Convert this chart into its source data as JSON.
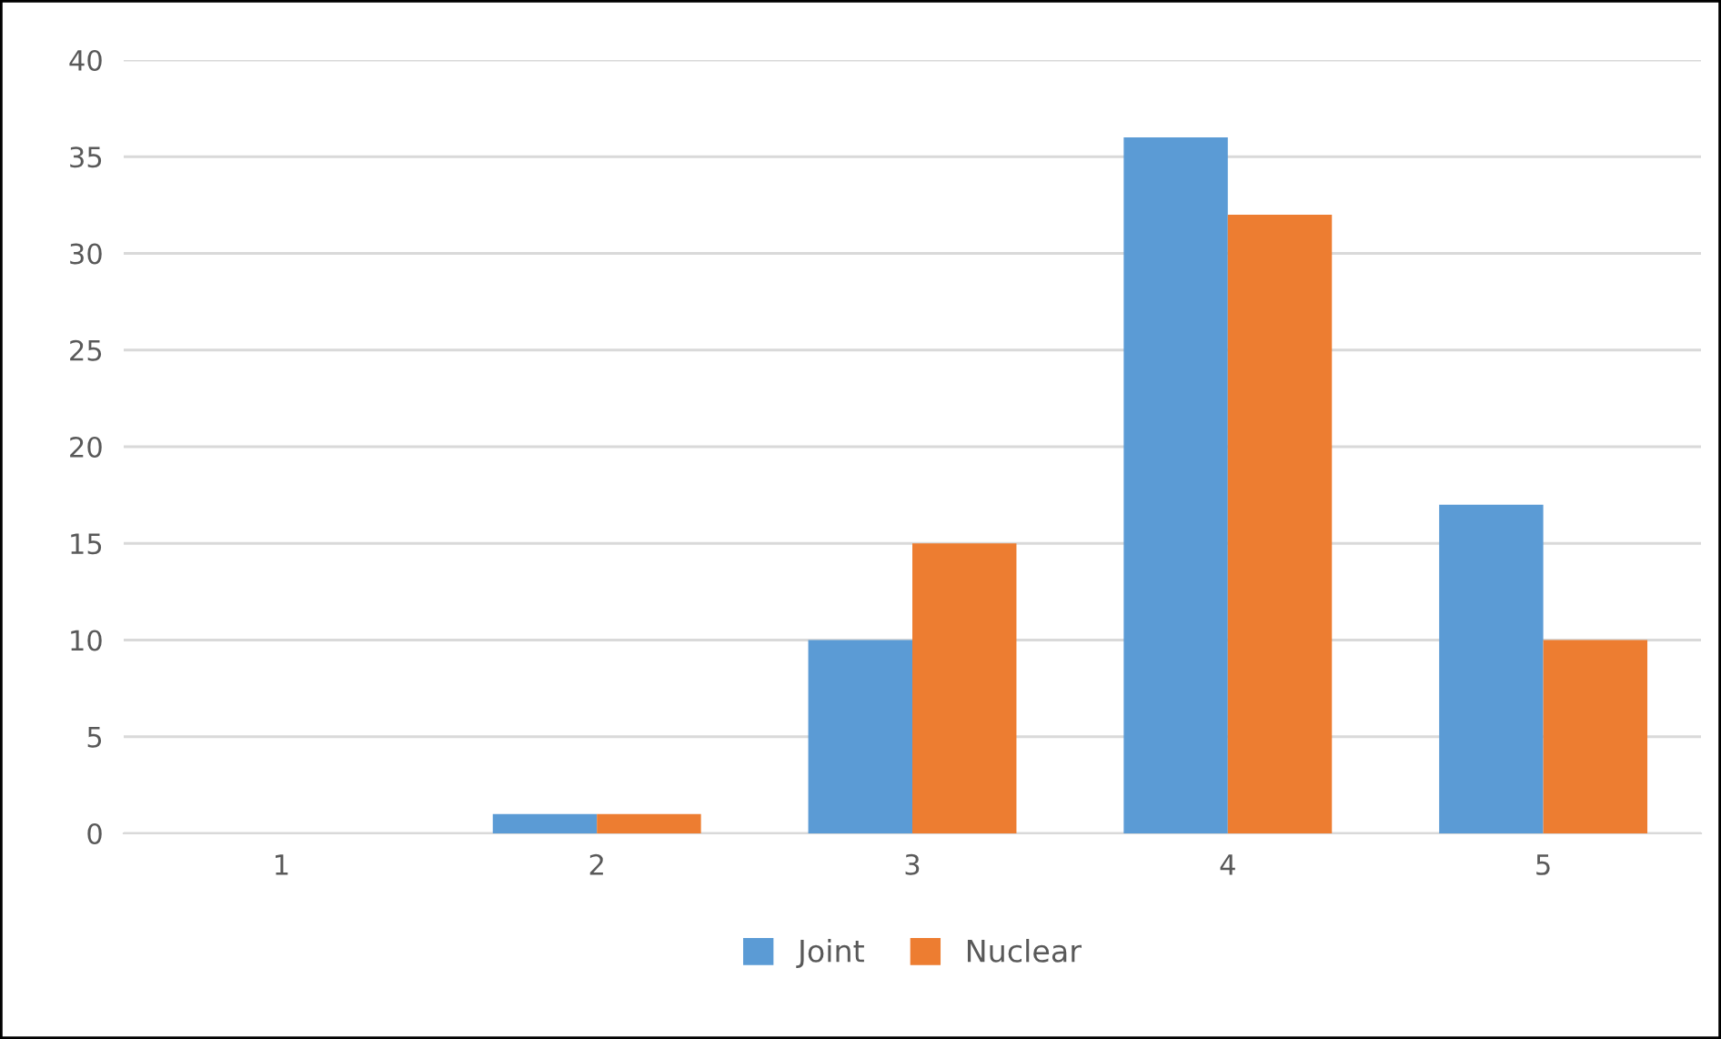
{
  "chart_data": {
    "type": "bar",
    "categories": [
      "1",
      "2",
      "3",
      "4",
      "5"
    ],
    "series": [
      {
        "name": "Joint",
        "color": "#5b9bd5",
        "values": [
          0,
          1,
          10,
          36,
          17
        ]
      },
      {
        "name": "Nuclear",
        "color": "#ed7d31",
        "values": [
          0,
          1,
          15,
          32,
          10
        ]
      }
    ],
    "ylim": [
      0,
      40
    ],
    "yticks": [
      0,
      5,
      10,
      15,
      20,
      25,
      30,
      35,
      40
    ],
    "grid": "y",
    "legend": "bottom"
  }
}
